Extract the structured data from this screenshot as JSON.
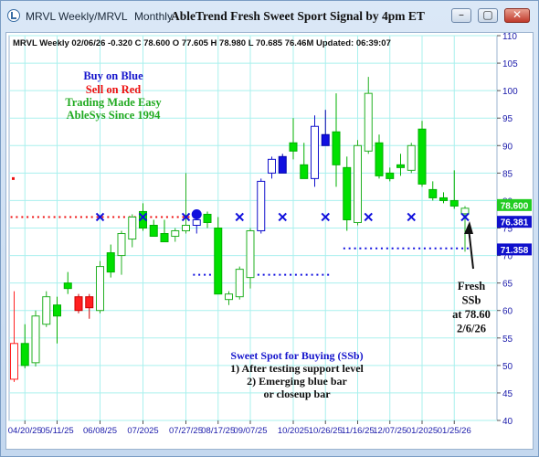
{
  "window": {
    "tabs": [
      "MRVL Weekly/MRVL",
      "Monthly"
    ],
    "title": "AbleTrend Fresh Sweet Sport Signal by 4pm ET",
    "min_glyph": "–",
    "max_glyph": "▢",
    "close_glyph": "✕"
  },
  "chart_header": "MRVL  Weekly 02/06/26 -0.320 C 78.600 O 77.605 H 78.980 L 70.685 76.46M Updated: 06:39:07",
  "legend_block": {
    "buy": "Buy on Blue",
    "sell": "Sell on Red",
    "tagline": "Trading Made Easy",
    "brand": "AbleSys Since 1994"
  },
  "colors": {
    "up": "#00e000",
    "down": "#00cc33",
    "blue_bar": "#1010e0",
    "red_bar": "#ff2020",
    "stop_red": "#ee1111",
    "stop_blue": "#1010e0",
    "grid": "#aaf0ee",
    "axis_text": "#1a1aaa"
  },
  "annotation_right": [
    "Fresh",
    "SSb",
    "at 78.60",
    "2/6/26"
  ],
  "sweet_spot": {
    "title": "Sweet Spot for Buying (SSb)",
    "lines": [
      "1) After testing support level",
      "2) Emerging blue bar",
      "or closeup bar"
    ]
  },
  "price_labels": [
    {
      "value": "78.600",
      "color": "#22cc22"
    },
    {
      "value": "76.381",
      "color": "#1010cc"
    },
    {
      "value": "71.358",
      "color": "#1010cc"
    }
  ],
  "chart_data": {
    "type": "candlestick",
    "ylim": [
      40,
      110
    ],
    "y_ticks": [
      40,
      45,
      50,
      55,
      60,
      65,
      70,
      75,
      80,
      85,
      90,
      95,
      100,
      105,
      110
    ],
    "x_tick_labels": [
      "04/20/25",
      "05/11/25",
      "06/08/25",
      "07/2025",
      "07/27/25",
      "08/17/25",
      "09/07/25",
      "10/2025",
      "10/26/25",
      "11/16/25",
      "12/07/25",
      "01/2025",
      "01/25/26"
    ],
    "x_tick_index": [
      1,
      4,
      8,
      12,
      16,
      19,
      22,
      26,
      29,
      32,
      35,
      38,
      41
    ],
    "candles": [
      {
        "o": 47.5,
        "h": 63.5,
        "l": 47.0,
        "c": 54.0,
        "kind": "hollow-red"
      },
      {
        "o": 54.0,
        "h": 57.5,
        "l": 49.5,
        "c": 50.0,
        "kind": "green"
      },
      {
        "o": 50.5,
        "h": 60.0,
        "l": 49.8,
        "c": 59.0,
        "kind": "hollow-green"
      },
      {
        "o": 57.5,
        "h": 63.5,
        "l": 57.0,
        "c": 62.5,
        "kind": "hollow-green"
      },
      {
        "o": 61.0,
        "h": 62.5,
        "l": 54.0,
        "c": 59.0,
        "kind": "green"
      },
      {
        "o": 64.0,
        "h": 67.0,
        "l": 63.0,
        "c": 65.0,
        "kind": "green"
      },
      {
        "o": 62.5,
        "h": 63.0,
        "l": 59.5,
        "c": 60.0,
        "kind": "red"
      },
      {
        "o": 60.5,
        "h": 63.0,
        "l": 58.5,
        "c": 62.5,
        "kind": "red"
      },
      {
        "o": 60.0,
        "h": 69.0,
        "l": 59.5,
        "c": 68.0,
        "kind": "hollow-green"
      },
      {
        "o": 67.0,
        "h": 72.0,
        "l": 66.0,
        "c": 70.5,
        "kind": "green"
      },
      {
        "o": 70.0,
        "h": 74.5,
        "l": 66.5,
        "c": 74.0,
        "kind": "hollow-green"
      },
      {
        "o": 73.0,
        "h": 77.5,
        "l": 71.5,
        "c": 77.0,
        "kind": "hollow-green"
      },
      {
        "o": 78.0,
        "h": 79.5,
        "l": 74.5,
        "c": 75.0,
        "kind": "green"
      },
      {
        "o": 75.5,
        "h": 76.5,
        "l": 73.5,
        "c": 73.5,
        "kind": "green"
      },
      {
        "o": 74.0,
        "h": 76.5,
        "l": 72.5,
        "c": 72.5,
        "kind": "green"
      },
      {
        "o": 73.5,
        "h": 75.0,
        "l": 72.5,
        "c": 74.5,
        "kind": "hollow-green"
      },
      {
        "o": 74.5,
        "h": 85.0,
        "l": 74.0,
        "c": 75.5,
        "kind": "hollow-green"
      },
      {
        "o": 75.5,
        "h": 77.0,
        "l": 74.0,
        "c": 76.5,
        "kind": "hollow-blue"
      },
      {
        "o": 77.5,
        "h": 78.0,
        "l": 75.0,
        "c": 76.0,
        "kind": "green"
      },
      {
        "o": 75.0,
        "h": 77.0,
        "l": 63.0,
        "c": 63.0,
        "kind": "green"
      },
      {
        "o": 62.0,
        "h": 63.5,
        "l": 61.0,
        "c": 63.0,
        "kind": "hollow-green"
      },
      {
        "o": 62.5,
        "h": 68.0,
        "l": 62.0,
        "c": 67.5,
        "kind": "hollow-green"
      },
      {
        "o": 66.0,
        "h": 75.0,
        "l": 64.0,
        "c": 74.5,
        "kind": "hollow-green"
      },
      {
        "o": 74.5,
        "h": 84.0,
        "l": 74.0,
        "c": 83.5,
        "kind": "hollow-blue"
      },
      {
        "o": 85.0,
        "h": 88.0,
        "l": 84.0,
        "c": 87.5,
        "kind": "hollow-blue"
      },
      {
        "o": 88.0,
        "h": 88.5,
        "l": 85.0,
        "c": 85.0,
        "kind": "blue"
      },
      {
        "o": 89.0,
        "h": 95.0,
        "l": 87.5,
        "c": 90.5,
        "kind": "green"
      },
      {
        "o": 86.5,
        "h": 90.5,
        "l": 84.0,
        "c": 84.0,
        "kind": "green"
      },
      {
        "o": 84.0,
        "h": 95.5,
        "l": 82.5,
        "c": 93.5,
        "kind": "hollow-blue"
      },
      {
        "o": 92.0,
        "h": 96.5,
        "l": 90.0,
        "c": 90.0,
        "kind": "blue"
      },
      {
        "o": 92.5,
        "h": 99.5,
        "l": 82.5,
        "c": 86.5,
        "kind": "green"
      },
      {
        "o": 86.0,
        "h": 88.0,
        "l": 74.5,
        "c": 76.5,
        "kind": "green"
      },
      {
        "o": 76.0,
        "h": 91.0,
        "l": 75.5,
        "c": 90.0,
        "kind": "hollow-green"
      },
      {
        "o": 89.0,
        "h": 102.5,
        "l": 88.5,
        "c": 99.5,
        "kind": "hollow-green"
      },
      {
        "o": 90.5,
        "h": 92.0,
        "l": 84.0,
        "c": 84.5,
        "kind": "green"
      },
      {
        "o": 85.0,
        "h": 86.0,
        "l": 83.5,
        "c": 84.0,
        "kind": "green"
      },
      {
        "o": 86.0,
        "h": 88.5,
        "l": 84.5,
        "c": 86.5,
        "kind": "green"
      },
      {
        "o": 85.5,
        "h": 90.5,
        "l": 85.0,
        "c": 90.0,
        "kind": "hollow-green"
      },
      {
        "o": 93.0,
        "h": 94.5,
        "l": 82.5,
        "c": 83.0,
        "kind": "green"
      },
      {
        "o": 82.0,
        "h": 83.5,
        "l": 80.0,
        "c": 80.5,
        "kind": "green"
      },
      {
        "o": 80.5,
        "h": 81.5,
        "l": 79.5,
        "c": 80.0,
        "kind": "green"
      },
      {
        "o": 80.0,
        "h": 85.5,
        "l": 78.5,
        "c": 79.0,
        "kind": "green"
      },
      {
        "o": 77.6,
        "h": 79.0,
        "l": 70.7,
        "c": 78.6,
        "kind": "hollow-green"
      }
    ],
    "red_stop_dots": {
      "value": 77.0,
      "from": 0,
      "to": 18
    },
    "blue_stop_dots": [
      {
        "value": 66.5,
        "from": 17,
        "to": 19
      },
      {
        "value": 66.5,
        "from": 22,
        "to": 29
      },
      {
        "value": 71.3,
        "from": 31,
        "to": 36
      },
      {
        "value": 71.3,
        "from": 37,
        "to": 40
      },
      {
        "value": 71.3,
        "from": 41,
        "to": 42
      }
    ],
    "blue_x_markers": [
      {
        "i": 8,
        "v": 77
      },
      {
        "i": 12,
        "v": 77
      },
      {
        "i": 16,
        "v": 77
      },
      {
        "i": 21,
        "v": 77
      },
      {
        "i": 25,
        "v": 77
      },
      {
        "i": 29,
        "v": 77
      },
      {
        "i": 33,
        "v": 77
      },
      {
        "i": 37,
        "v": 77
      },
      {
        "i": 42,
        "v": 77
      }
    ],
    "blue_dot": {
      "i": 17,
      "v": 77.5
    },
    "red_side_mark": {
      "value": 84.0
    }
  }
}
